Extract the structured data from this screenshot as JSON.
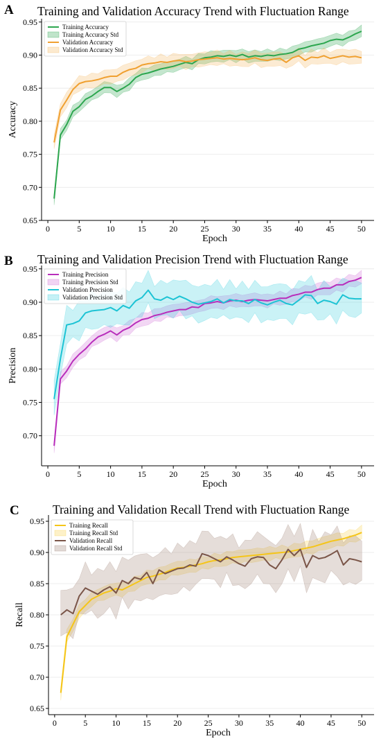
{
  "chart_data": [
    {
      "type": "line",
      "panel_letter": "A",
      "title": "Training and Validation Accuracy Trend with Fluctuation Range",
      "xlabel": "Epoch",
      "ylabel": "Accuracy",
      "xlim": [
        -1,
        52
      ],
      "ylim": [
        0.65,
        0.955
      ],
      "xticks": [
        0,
        5,
        10,
        15,
        20,
        25,
        30,
        35,
        40,
        45,
        50
      ],
      "yticks": [
        0.65,
        0.7,
        0.75,
        0.8,
        0.85,
        0.9,
        0.95
      ],
      "grid": true,
      "legend": "top-left",
      "legend_entries": [
        "Training Accuracy",
        "Training Accuracy Std",
        "Validation Accuracy",
        "Validation Accuracy Std"
      ],
      "x": [
        1,
        2,
        3,
        4,
        5,
        6,
        7,
        8,
        9,
        10,
        11,
        12,
        13,
        14,
        15,
        16,
        17,
        18,
        19,
        20,
        21,
        22,
        23,
        24,
        25,
        26,
        27,
        28,
        29,
        30,
        31,
        32,
        33,
        34,
        35,
        36,
        37,
        38,
        39,
        40,
        41,
        42,
        43,
        44,
        45,
        46,
        47,
        48,
        49,
        50
      ],
      "series": [
        {
          "name": "Training Accuracy",
          "color": "#2ca64e",
          "band_color": "#2ca64e",
          "std": 0.008,
          "values": [
            0.683,
            0.779,
            0.795,
            0.815,
            0.822,
            0.833,
            0.838,
            0.845,
            0.851,
            0.851,
            0.845,
            0.85,
            0.856,
            0.866,
            0.871,
            0.873,
            0.876,
            0.879,
            0.881,
            0.883,
            0.886,
            0.889,
            0.887,
            0.893,
            0.896,
            0.897,
            0.899,
            0.898,
            0.9,
            0.898,
            0.901,
            0.897,
            0.899,
            0.898,
            0.9,
            0.899,
            0.901,
            0.902,
            0.904,
            0.909,
            0.911,
            0.914,
            0.916,
            0.918,
            0.922,
            0.924,
            0.923,
            0.927,
            0.932,
            0.936
          ]
        },
        {
          "name": "Validation Accuracy",
          "color": "#f0a030",
          "band_color": "#f5b860",
          "std": 0.01,
          "values": [
            0.768,
            0.817,
            0.832,
            0.848,
            0.857,
            0.86,
            0.861,
            0.863,
            0.866,
            0.868,
            0.868,
            0.874,
            0.878,
            0.88,
            0.885,
            0.887,
            0.888,
            0.89,
            0.889,
            0.891,
            0.892,
            0.89,
            0.891,
            0.893,
            0.894,
            0.895,
            0.896,
            0.894,
            0.895,
            0.894,
            0.893,
            0.894,
            0.896,
            0.893,
            0.892,
            0.894,
            0.895,
            0.889,
            0.896,
            0.899,
            0.892,
            0.897,
            0.896,
            0.899,
            0.895,
            0.897,
            0.899,
            0.897,
            0.898,
            0.896
          ]
        }
      ]
    },
    {
      "type": "line",
      "panel_letter": "B",
      "title": "Training and Validation Precision Trend with Fluctuation Range",
      "xlabel": "Epoch",
      "ylabel": "Precision",
      "xlim": [
        -1,
        52
      ],
      "ylim": [
        0.655,
        0.955
      ],
      "xticks": [
        0,
        5,
        10,
        15,
        20,
        25,
        30,
        35,
        40,
        45,
        50
      ],
      "yticks": [
        0.7,
        0.75,
        0.8,
        0.85,
        0.9,
        0.95
      ],
      "grid": true,
      "legend": "top-left",
      "legend_entries": [
        "Training Precision",
        "Training Precision Std",
        "Validation Precision",
        "Validation Precision Std"
      ],
      "x": [
        1,
        2,
        3,
        4,
        5,
        6,
        7,
        8,
        9,
        10,
        11,
        12,
        13,
        14,
        15,
        16,
        17,
        18,
        19,
        20,
        21,
        22,
        23,
        24,
        25,
        26,
        27,
        28,
        29,
        30,
        31,
        32,
        33,
        34,
        35,
        36,
        37,
        38,
        39,
        40,
        41,
        42,
        43,
        44,
        45,
        46,
        47,
        48,
        49,
        50
      ],
      "series": [
        {
          "name": "Training Precision",
          "color": "#b82dbb",
          "band_color": "#d070d8",
          "std": 0.009,
          "values": [
            0.685,
            0.785,
            0.797,
            0.812,
            0.822,
            0.83,
            0.84,
            0.848,
            0.852,
            0.857,
            0.851,
            0.858,
            0.862,
            0.869,
            0.874,
            0.876,
            0.88,
            0.882,
            0.885,
            0.887,
            0.889,
            0.889,
            0.893,
            0.892,
            0.898,
            0.899,
            0.901,
            0.899,
            0.902,
            0.903,
            0.901,
            0.903,
            0.904,
            0.903,
            0.902,
            0.904,
            0.906,
            0.906,
            0.91,
            0.912,
            0.915,
            0.915,
            0.919,
            0.921,
            0.921,
            0.926,
            0.926,
            0.931,
            0.933,
            0.937
          ]
        },
        {
          "name": "Validation Precision",
          "color": "#1cc3d4",
          "band_color": "#40d0e0",
          "std": 0.025,
          "values": [
            0.755,
            0.815,
            0.866,
            0.868,
            0.872,
            0.884,
            0.887,
            0.888,
            0.889,
            0.892,
            0.887,
            0.895,
            0.891,
            0.902,
            0.907,
            0.918,
            0.905,
            0.903,
            0.908,
            0.904,
            0.909,
            0.905,
            0.9,
            0.897,
            0.899,
            0.901,
            0.905,
            0.899,
            0.904,
            0.902,
            0.902,
            0.898,
            0.904,
            0.899,
            0.896,
            0.9,
            0.903,
            0.898,
            0.896,
            0.903,
            0.911,
            0.91,
            0.898,
            0.903,
            0.901,
            0.897,
            0.911,
            0.906,
            0.905,
            0.905
          ]
        }
      ]
    },
    {
      "type": "line",
      "panel_letter": "C",
      "title": "Training and Validation Recall Trend with Fluctuation Range",
      "xlabel": "Epoch",
      "ylabel": "Recall",
      "xlim": [
        -1,
        52
      ],
      "ylim": [
        0.64,
        0.96
      ],
      "xticks": [
        0,
        5,
        10,
        15,
        20,
        25,
        30,
        35,
        40,
        45,
        50
      ],
      "yticks": [
        0.65,
        0.7,
        0.75,
        0.8,
        0.85,
        0.9,
        0.95
      ],
      "grid": true,
      "legend": "top-left",
      "legend_entries": [
        "Training Recall",
        "Training Recall Std",
        "Validation Recall",
        "Validation Recall Std"
      ],
      "x": [
        1,
        2,
        3,
        4,
        5,
        6,
        7,
        8,
        9,
        10,
        11,
        12,
        13,
        14,
        15,
        16,
        17,
        18,
        19,
        20,
        21,
        22,
        23,
        24,
        25,
        26,
        27,
        28,
        29,
        30,
        31,
        32,
        33,
        34,
        35,
        36,
        37,
        38,
        39,
        40,
        41,
        42,
        43,
        44,
        45,
        46,
        47,
        48,
        49,
        50
      ],
      "series": [
        {
          "name": "Training Recall",
          "color": "#f5c518",
          "band_color": "#f7d04a",
          "std": 0.01,
          "values": [
            0.675,
            0.765,
            0.785,
            0.805,
            0.815,
            0.825,
            0.83,
            0.835,
            0.838,
            0.842,
            0.84,
            0.845,
            0.85,
            0.855,
            0.86,
            0.862,
            0.865,
            0.868,
            0.872,
            0.875,
            0.876,
            0.878,
            0.88,
            0.882,
            0.885,
            0.887,
            0.888,
            0.89,
            0.892,
            0.893,
            0.894,
            0.895,
            0.896,
            0.897,
            0.898,
            0.899,
            0.9,
            0.901,
            0.903,
            0.905,
            0.907,
            0.909,
            0.912,
            0.915,
            0.918,
            0.92,
            0.922,
            0.925,
            0.928,
            0.932
          ]
        },
        {
          "name": "Validation Recall",
          "color": "#7a5548",
          "band_color": "#a08478",
          "std": 0.035,
          "values": [
            0.8,
            0.808,
            0.802,
            0.83,
            0.843,
            0.838,
            0.833,
            0.84,
            0.845,
            0.835,
            0.855,
            0.85,
            0.86,
            0.857,
            0.868,
            0.85,
            0.872,
            0.866,
            0.87,
            0.874,
            0.875,
            0.88,
            0.878,
            0.898,
            0.895,
            0.89,
            0.885,
            0.893,
            0.888,
            0.882,
            0.878,
            0.89,
            0.893,
            0.892,
            0.88,
            0.874,
            0.888,
            0.905,
            0.895,
            0.905,
            0.876,
            0.895,
            0.89,
            0.892,
            0.897,
            0.903,
            0.88,
            0.89,
            0.888,
            0.885
          ]
        }
      ]
    }
  ]
}
